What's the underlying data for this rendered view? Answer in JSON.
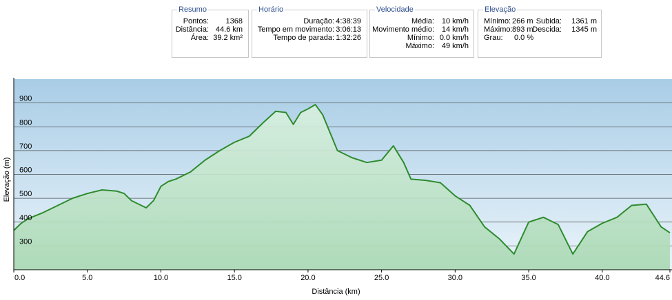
{
  "panels": {
    "resumo": {
      "title": "Resumo",
      "rows": [
        {
          "label": "Pontos:",
          "value": "1368"
        },
        {
          "label": "Distância:",
          "value": "44.6 km"
        },
        {
          "label": "Área:",
          "value": "39.2 km²"
        }
      ]
    },
    "horario": {
      "title": "Horário",
      "rows": [
        {
          "label": "Duração:",
          "value": "4:38:39"
        },
        {
          "label": "Tempo em movimento:",
          "value": "3:06:13"
        },
        {
          "label": "Tempo de parada:",
          "value": "1:32:26"
        }
      ]
    },
    "velocidade": {
      "title": "Velocidade",
      "rows": [
        {
          "label": "Média:",
          "value": "10 km/h"
        },
        {
          "label": "Movimento médio:",
          "value": "14 km/h"
        },
        {
          "label": "Mínimo:",
          "value": "0.0 km/h"
        },
        {
          "label": "Máximo:",
          "value": "49 km/h"
        }
      ]
    },
    "elevacao": {
      "title": "Elevação",
      "rows": [
        {
          "label": "Mínimo:",
          "value": "266 m",
          "label2": "Subida:",
          "value2": "1361 m"
        },
        {
          "label": "Máximo:",
          "value": "893 m",
          "label2": "Descida:",
          "value2": "1345 m"
        },
        {
          "label": "Grau:",
          "value": "0.0 %"
        }
      ]
    }
  },
  "colors": {
    "line": "#2e8b2e",
    "fill_top": "#d9f0df",
    "fill_bottom": "#a8d8b2",
    "sky_top": "#a9cde6",
    "sky_bottom": "#eaf4fa",
    "grid": "#555555"
  },
  "chart_data": {
    "type": "area",
    "xlabel": "Distância  (km)",
    "ylabel": "Elevação (m)",
    "xlim": [
      0,
      44.6
    ],
    "ylim": [
      200,
      1000
    ],
    "x_ticks": [
      "0.0",
      "5.0",
      "10.0",
      "15.0",
      "20.0",
      "25.0",
      "30.0",
      "35.0",
      "40.0",
      "44.6"
    ],
    "y_ticks": [
      "300",
      "400",
      "500",
      "600",
      "700",
      "800",
      "900"
    ],
    "grid": true,
    "x": [
      0,
      0.5,
      1,
      2,
      3,
      4,
      5,
      6,
      7,
      7.5,
      8,
      9,
      9.5,
      10,
      10.5,
      11,
      12,
      13,
      14,
      15,
      16,
      17,
      17.8,
      18.5,
      19,
      19.5,
      20,
      20.5,
      21,
      22,
      23,
      24,
      25,
      25.8,
      26.5,
      27,
      28,
      29,
      30,
      31,
      32,
      33,
      34,
      35,
      36,
      37,
      38,
      39,
      40,
      41,
      42,
      43,
      44,
      44.6
    ],
    "y": [
      365,
      395,
      415,
      440,
      470,
      500,
      520,
      535,
      530,
      520,
      490,
      460,
      490,
      550,
      570,
      580,
      610,
      660,
      700,
      735,
      760,
      820,
      865,
      860,
      810,
      860,
      875,
      893,
      850,
      700,
      670,
      650,
      660,
      720,
      650,
      580,
      575,
      565,
      510,
      470,
      380,
      330,
      266,
      400,
      420,
      390,
      266,
      360,
      395,
      420,
      470,
      475,
      380,
      355
    ]
  },
  "labels": {
    "xlabel": "Distância  (km)",
    "ylabel": "Elevação (m)"
  }
}
